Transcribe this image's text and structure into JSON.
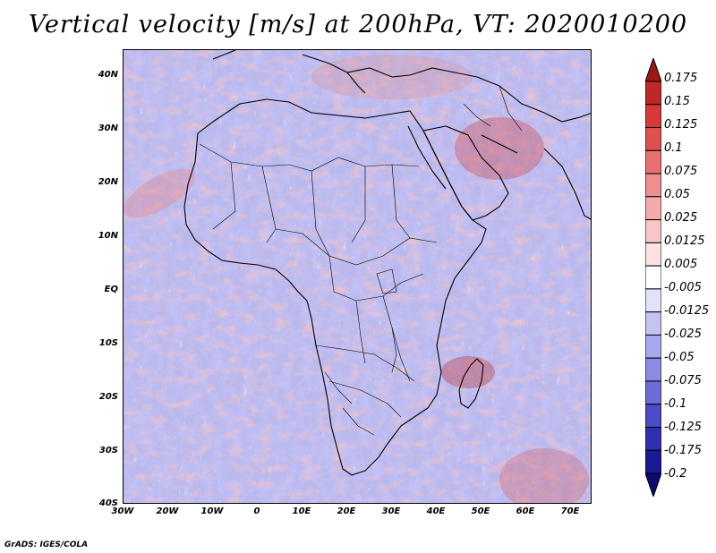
{
  "title": "Vertical velocity [m/s] at 200hPa, VT: 2020010200",
  "map": {
    "lat_labels": [
      "40N",
      "30N",
      "20N",
      "10N",
      "EQ",
      "10S",
      "20S",
      "30S",
      "40S"
    ],
    "lon_labels": [
      "30W",
      "20W",
      "10W",
      "0",
      "10E",
      "20E",
      "30E",
      "40E",
      "50E",
      "60E",
      "70E"
    ],
    "lon_range": [
      -30,
      75
    ],
    "lat_range": [
      -40,
      45
    ]
  },
  "colorbar": {
    "levels": [
      "0.175",
      "0.15",
      "0.125",
      "0.1",
      "0.075",
      "0.05",
      "0.025",
      "0.0125",
      "0.005",
      "-0.005",
      "-0.0125",
      "-0.025",
      "-0.05",
      "-0.075",
      "-0.1",
      "-0.125",
      "-0.175",
      "-0.2"
    ],
    "colors": [
      "#a01818",
      "#c02828",
      "#d83838",
      "#e05050",
      "#e87070",
      "#ee8e8e",
      "#f3aaaa",
      "#f7c6c6",
      "#fbe2e2",
      "#ffffff",
      "#e2e2fb",
      "#c4c4f3",
      "#a8a8ee",
      "#8c8ce6",
      "#6c6cda",
      "#4c4cc8",
      "#3030b0",
      "#1a1a96",
      "#0a0a70"
    ]
  },
  "credit": "GrADS: IGES/COLA"
}
